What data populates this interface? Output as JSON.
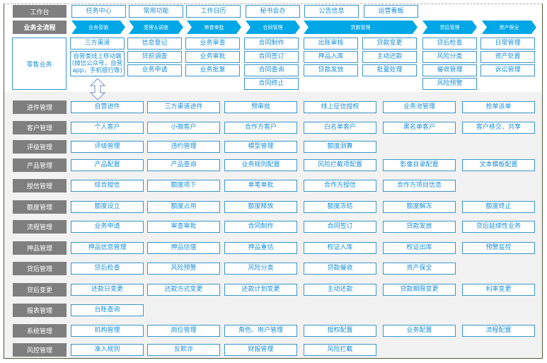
{
  "workbench": {
    "label": "工作台",
    "items": [
      "任务中心",
      "常用功能",
      "工作日历",
      "秘书会办",
      "公告信息",
      "运营看板"
    ]
  },
  "process": {
    "label": "业务全流程",
    "stages": [
      "业务营销",
      "受理＆调查",
      "审查审批",
      "合同管理",
      "贷款管理",
      "贷后管理",
      "资产保全"
    ]
  },
  "retail": {
    "label": "零售业务",
    "columns": [
      [
        "三方渠道",
        "自营类线上移动端(微信公众号，自营app，手机银行等)"
      ],
      [
        "信息登记",
        "贷前调查",
        "业务申请"
      ],
      [
        "业务审查",
        "业务审批",
        "业务批复"
      ],
      [
        "合同制作",
        "合同签订",
        "合同查询",
        "合同终止"
      ],
      [
        "出账审核",
        "押品入库",
        "贷款发放"
      ],
      [
        "贷款变更",
        "主动还款",
        "批量处理"
      ],
      [
        "贷后检查",
        "风险分类",
        "催收管理",
        "风险预警"
      ],
      [
        "日常管理",
        "资产处置",
        "诉讼管理"
      ]
    ]
  },
  "modules": [
    {
      "label": "进件管理",
      "items": [
        "自营进件",
        "三方渠道进件",
        "预审批",
        "线上征信授权",
        "业务池管理",
        "抢单派单"
      ]
    },
    {
      "label": "客户管理",
      "items": [
        "个人客户",
        "小微客户",
        "合作方客户",
        "白名单客户",
        "黑名单客户",
        "客户移交、共享"
      ]
    },
    {
      "label": "评级管理",
      "items": [
        "评级管理",
        "违约管理",
        "模型管理",
        "额度测算"
      ]
    },
    {
      "label": "产品管理",
      "items": [
        "产品配置",
        "产品查询",
        "业务规则配置",
        "风险拦截项配置",
        "影像目录配置",
        "文本模板配置"
      ]
    },
    {
      "label": "授信管理",
      "items": [
        "综合授信",
        "额度项下",
        "单笔单批",
        "合作方授信",
        "合作方项目信息"
      ]
    },
    {
      "label": "额度管理",
      "items": [
        "额度设立",
        "额度占用",
        "额度释放",
        "额度冻结",
        "额度解冻",
        "额度终止"
      ]
    },
    {
      "label": "流程管理",
      "items": [
        "业务申请",
        "审查审批",
        "合同制作",
        "合同签订",
        "贷款发放",
        "贷后延续性业务"
      ]
    },
    {
      "label": "押品管理",
      "items": [
        "押品信息管理",
        "押品估值",
        "押品重估",
        "权证入库",
        "权证出库",
        "预警监控"
      ]
    },
    {
      "label": "贷后管理",
      "items": [
        "贷后检查",
        "风险预警",
        "风险分类",
        "贷款催收",
        "资产保全"
      ]
    },
    {
      "label": "贷后变更",
      "items": [
        "还款日变更",
        "还款方式变更",
        "还款计划变更",
        "主动还款",
        "贷款期限变更",
        "利率变更"
      ]
    },
    {
      "label": "报表管理",
      "items": [
        "台账查询"
      ]
    },
    {
      "label": "系统管理",
      "items": [
        "机构管理",
        "岗位管理",
        "角色、用户管理",
        "授权配置",
        "业务配置",
        "流程配置"
      ]
    },
    {
      "label": "风控管理",
      "items": [
        "准入规则",
        "反欺诈",
        "财报管理",
        "风险拦截"
      ]
    }
  ],
  "colors": {
    "label_bg": "#7f7f7f",
    "chevron": "#00a7e6",
    "box_border": "#3a96c8",
    "text": "#1a8fd8",
    "lower_bg": "#f2f2f2"
  }
}
